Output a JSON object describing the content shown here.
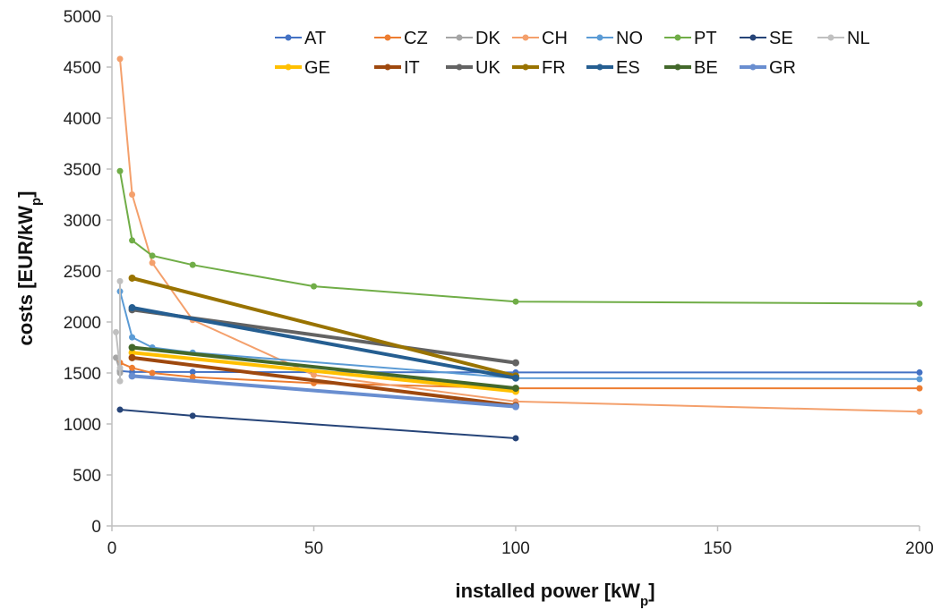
{
  "chart_data": {
    "type": "line",
    "xlabel": "installed power [kW",
    "xlabel_sub": "p",
    "xlabel_end": "]",
    "ylabel": "costs [EUR/kW",
    "ylabel_sub": "p",
    "ylabel_end": "]",
    "xlim": [
      0,
      200
    ],
    "ylim": [
      0,
      5000
    ],
    "xticks": [
      0,
      50,
      100,
      150,
      200
    ],
    "yticks": [
      0,
      500,
      1000,
      1500,
      2000,
      2500,
      3000,
      3500,
      4000,
      4500,
      5000
    ],
    "grid": false,
    "legend_position": "top",
    "series": [
      {
        "name": "AT",
        "color": "#4472c4",
        "width": 2,
        "x": [
          2,
          5,
          20,
          100,
          200
        ],
        "y": [
          1520,
          1510,
          1510,
          1505,
          1505
        ]
      },
      {
        "name": "CZ",
        "color": "#ed7d31",
        "width": 2,
        "x": [
          2,
          5,
          10,
          20,
          50,
          100,
          200
        ],
        "y": [
          1600,
          1550,
          1500,
          1460,
          1400,
          1350,
          1350
        ]
      },
      {
        "name": "DK",
        "color": "#a5a5a5",
        "width": 2,
        "x": [
          1,
          2,
          2
        ],
        "y": [
          1650,
          1520,
          1500
        ]
      },
      {
        "name": "CH",
        "color": "#f4a06c",
        "width": 2,
        "x": [
          2,
          5,
          10,
          20,
          50,
          100,
          200
        ],
        "y": [
          4580,
          3250,
          2580,
          2020,
          1480,
          1220,
          1120
        ]
      },
      {
        "name": "NO",
        "color": "#5b9bd5",
        "width": 2,
        "x": [
          2,
          5,
          10,
          20,
          100,
          200
        ],
        "y": [
          2300,
          1850,
          1750,
          1700,
          1450,
          1440
        ]
      },
      {
        "name": "PT",
        "color": "#70ad47",
        "width": 2,
        "x": [
          2,
          5,
          10,
          20,
          50,
          100,
          200
        ],
        "y": [
          3480,
          2800,
          2650,
          2560,
          2350,
          2200,
          2180
        ]
      },
      {
        "name": "SE",
        "color": "#264478",
        "width": 2,
        "x": [
          2,
          20,
          100
        ],
        "y": [
          1140,
          1080,
          860
        ]
      },
      {
        "name": "NL",
        "color": "#c0c0c0",
        "width": 2,
        "x": [
          1,
          2,
          2,
          2
        ],
        "y": [
          1900,
          1550,
          1420,
          2400
        ]
      },
      {
        "name": "GE",
        "color": "#ffc000",
        "width": 4,
        "x": [
          5,
          100
        ],
        "y": [
          1700,
          1320
        ]
      },
      {
        "name": "IT",
        "color": "#9e480e",
        "width": 4,
        "x": [
          5,
          100
        ],
        "y": [
          1650,
          1180
        ]
      },
      {
        "name": "UK",
        "color": "#636363",
        "width": 4,
        "x": [
          5,
          100
        ],
        "y": [
          2120,
          1600
        ]
      },
      {
        "name": "FR",
        "color": "#997300",
        "width": 4,
        "x": [
          5,
          100
        ],
        "y": [
          2430,
          1470
        ]
      },
      {
        "name": "ES",
        "color": "#255e91",
        "width": 4,
        "x": [
          5,
          100
        ],
        "y": [
          2140,
          1450
        ]
      },
      {
        "name": "BE",
        "color": "#43682b",
        "width": 4,
        "x": [
          5,
          100
        ],
        "y": [
          1750,
          1350
        ]
      },
      {
        "name": "GR",
        "color": "#698ed0",
        "width": 4,
        "x": [
          5,
          100
        ],
        "y": [
          1470,
          1170
        ]
      }
    ]
  }
}
